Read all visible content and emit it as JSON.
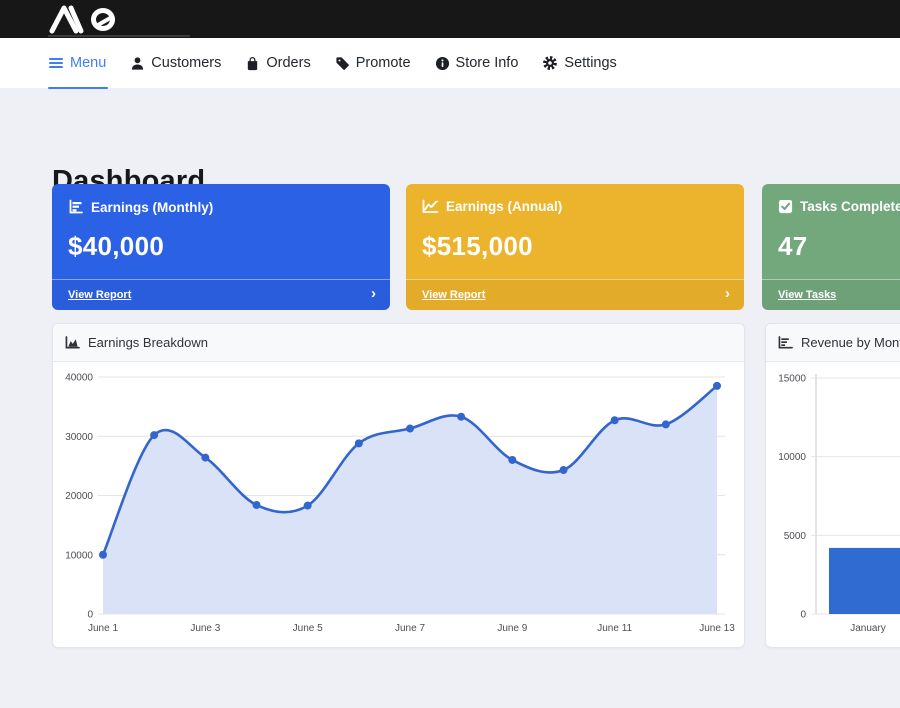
{
  "topbar": {
    "logo_text": "ΛQ"
  },
  "nav": {
    "items": [
      {
        "label": "Menu",
        "icon": "hamburger-icon",
        "active": true
      },
      {
        "label": "Customers",
        "icon": "person-icon",
        "active": false
      },
      {
        "label": "Orders",
        "icon": "bag-icon",
        "active": false
      },
      {
        "label": "Promote",
        "icon": "tag-icon",
        "active": false
      },
      {
        "label": "Store Info",
        "icon": "info-circle-icon",
        "active": false
      },
      {
        "label": "Settings",
        "icon": "gear-icon",
        "active": false
      }
    ]
  },
  "page": {
    "title": "Dashboard"
  },
  "stat_cards": [
    {
      "title": "Earnings (Monthly)",
      "value": "$40,000",
      "link_label": "View Report",
      "chevron": "›",
      "color": "#2b61e4",
      "icon": "bar-chart-icon"
    },
    {
      "title": "Earnings (Annual)",
      "value": "$515,000",
      "link_label": "View Report",
      "chevron": "›",
      "color": "#ecb42c",
      "icon": "line-chart-icon"
    },
    {
      "title": "Tasks Completed",
      "value": "47",
      "link_label": "View Tasks",
      "chevron": "›",
      "color": "#73a87d",
      "icon": "check-square-icon"
    }
  ],
  "chart_data": [
    {
      "type": "area",
      "title": "Earnings Breakdown",
      "x": [
        "June 1",
        "June 2",
        "June 3",
        "June 4",
        "June 5",
        "June 6",
        "June 7",
        "June 8",
        "June 9",
        "June 10",
        "June 11",
        "June 12",
        "June 13"
      ],
      "values": [
        10000,
        30200,
        26400,
        18400,
        18300,
        28800,
        31300,
        33300,
        26000,
        24300,
        32700,
        32000,
        38500
      ],
      "ylim": [
        0,
        40000
      ],
      "yticks": [
        0,
        10000,
        20000,
        30000,
        40000
      ],
      "xtick_every": 2,
      "line_color": "#3366cc",
      "fill_color": "#d9e2f6",
      "grid": true,
      "legend": "none"
    },
    {
      "type": "bar",
      "title": "Revenue by Month",
      "categories": [
        "January"
      ],
      "values": [
        4200
      ],
      "ylim": [
        0,
        15000
      ],
      "yticks": [
        0,
        5000,
        10000,
        15000
      ],
      "bar_color": "#2f6bd0",
      "grid": true,
      "legend": "none"
    }
  ]
}
